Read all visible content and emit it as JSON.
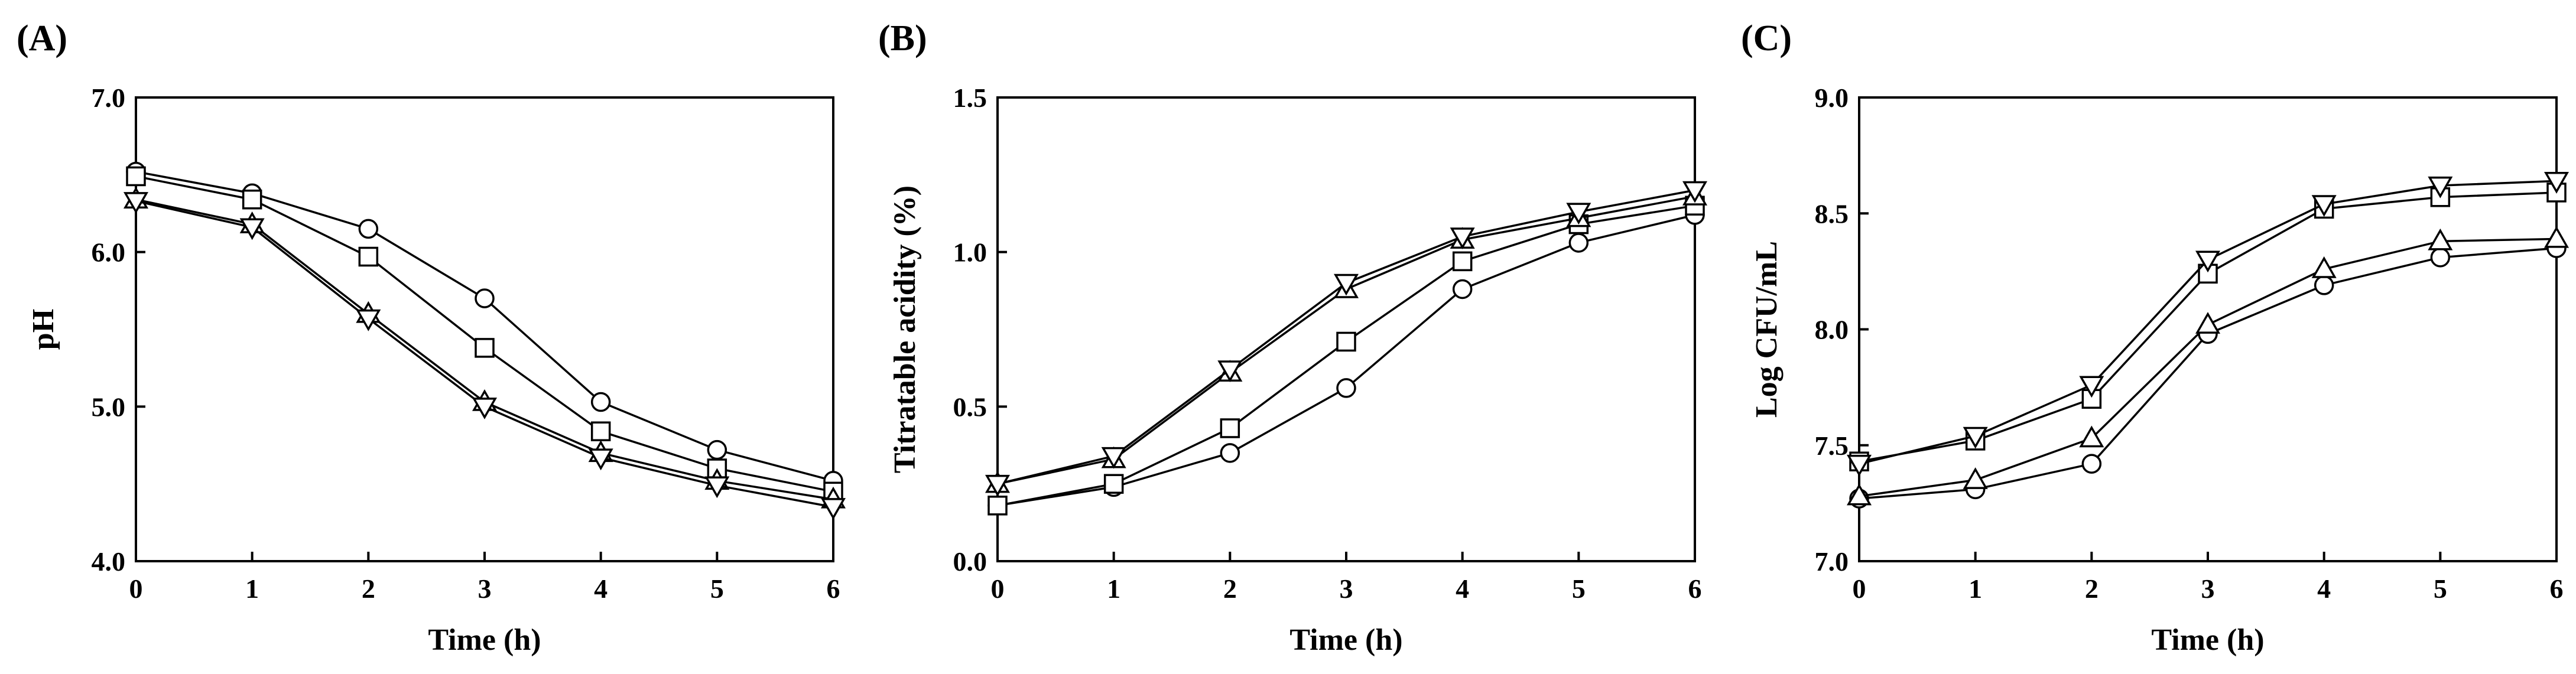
{
  "chart_data": [
    {
      "type": "line",
      "panel_label": "(A)",
      "title": "",
      "xlabel": "Time (h)",
      "ylabel": "pH",
      "xlim": [
        0,
        6
      ],
      "ylim": [
        4.0,
        7.0
      ],
      "x": [
        0,
        1,
        2,
        3,
        4,
        5,
        6
      ],
      "x_tick_labels": [
        "0",
        "1",
        "2",
        "3",
        "4",
        "5",
        "6"
      ],
      "y_ticks": [
        4.0,
        5.0,
        6.0,
        7.0
      ],
      "y_tick_labels": [
        "4.0",
        "5.0",
        "6.0",
        "7.0"
      ],
      "grid": false,
      "legend": "none",
      "series": [
        {
          "name": "circle",
          "marker": "circle",
          "values": [
            6.52,
            6.38,
            6.15,
            5.7,
            5.03,
            4.72,
            4.52
          ]
        },
        {
          "name": "square",
          "marker": "square",
          "values": [
            6.49,
            6.34,
            5.97,
            5.38,
            4.84,
            4.6,
            4.45
          ]
        },
        {
          "name": "triangle-up",
          "marker": "triangle-up",
          "values": [
            6.34,
            6.18,
            5.6,
            5.03,
            4.7,
            4.52,
            4.4
          ]
        },
        {
          "name": "triangle-down",
          "marker": "triangle-down",
          "values": [
            6.33,
            6.16,
            5.57,
            5.0,
            4.67,
            4.49,
            4.35
          ]
        }
      ]
    },
    {
      "type": "line",
      "panel_label": "(B)",
      "title": "",
      "xlabel": "Time (h)",
      "ylabel": "Titratable acidity (%)",
      "xlim": [
        0,
        6
      ],
      "ylim": [
        0.0,
        1.5
      ],
      "x": [
        0,
        1,
        2,
        3,
        4,
        5,
        6
      ],
      "x_tick_labels": [
        "0",
        "1",
        "2",
        "3",
        "4",
        "5",
        "6"
      ],
      "y_ticks": [
        0.0,
        0.5,
        1.0,
        1.5
      ],
      "y_tick_labels": [
        "0.0",
        "0.5",
        "1.0",
        "1.5"
      ],
      "grid": false,
      "legend": "none",
      "series": [
        {
          "name": "circle",
          "marker": "circle",
          "values": [
            0.18,
            0.24,
            0.35,
            0.56,
            0.88,
            1.03,
            1.12
          ]
        },
        {
          "name": "square",
          "marker": "square",
          "values": [
            0.18,
            0.25,
            0.43,
            0.71,
            0.97,
            1.09,
            1.15
          ]
        },
        {
          "name": "triangle-up",
          "marker": "triangle-up",
          "values": [
            0.25,
            0.33,
            0.61,
            0.88,
            1.04,
            1.11,
            1.18
          ]
        },
        {
          "name": "triangle-down",
          "marker": "triangle-down",
          "values": [
            0.25,
            0.34,
            0.62,
            0.9,
            1.05,
            1.13,
            1.2
          ]
        }
      ]
    },
    {
      "type": "line",
      "panel_label": "(C)",
      "title": "",
      "xlabel": "Time (h)",
      "ylabel": "Log CFU/mL",
      "xlim": [
        0,
        6
      ],
      "ylim": [
        7.0,
        9.0
      ],
      "x": [
        0,
        1,
        2,
        3,
        4,
        5,
        6
      ],
      "x_tick_labels": [
        "0",
        "1",
        "2",
        "3",
        "4",
        "5",
        "6"
      ],
      "y_ticks": [
        7.0,
        7.5,
        8.0,
        8.5,
        9.0
      ],
      "y_tick_labels": [
        "7.0",
        "7.5",
        "8.0",
        "8.5",
        "9.0"
      ],
      "grid": false,
      "legend": "none",
      "series": [
        {
          "name": "circle",
          "marker": "circle",
          "values": [
            7.27,
            7.31,
            7.42,
            7.98,
            8.19,
            8.31,
            8.35
          ]
        },
        {
          "name": "triangle-up",
          "marker": "triangle-up",
          "values": [
            7.28,
            7.35,
            7.53,
            8.02,
            8.26,
            8.38,
            8.39
          ]
        },
        {
          "name": "square",
          "marker": "square",
          "values": [
            7.43,
            7.52,
            7.7,
            8.24,
            8.52,
            8.57,
            8.59
          ]
        },
        {
          "name": "triangle-down",
          "marker": "triangle-down",
          "values": [
            7.42,
            7.54,
            7.76,
            8.3,
            8.54,
            8.62,
            8.64
          ]
        }
      ]
    }
  ]
}
